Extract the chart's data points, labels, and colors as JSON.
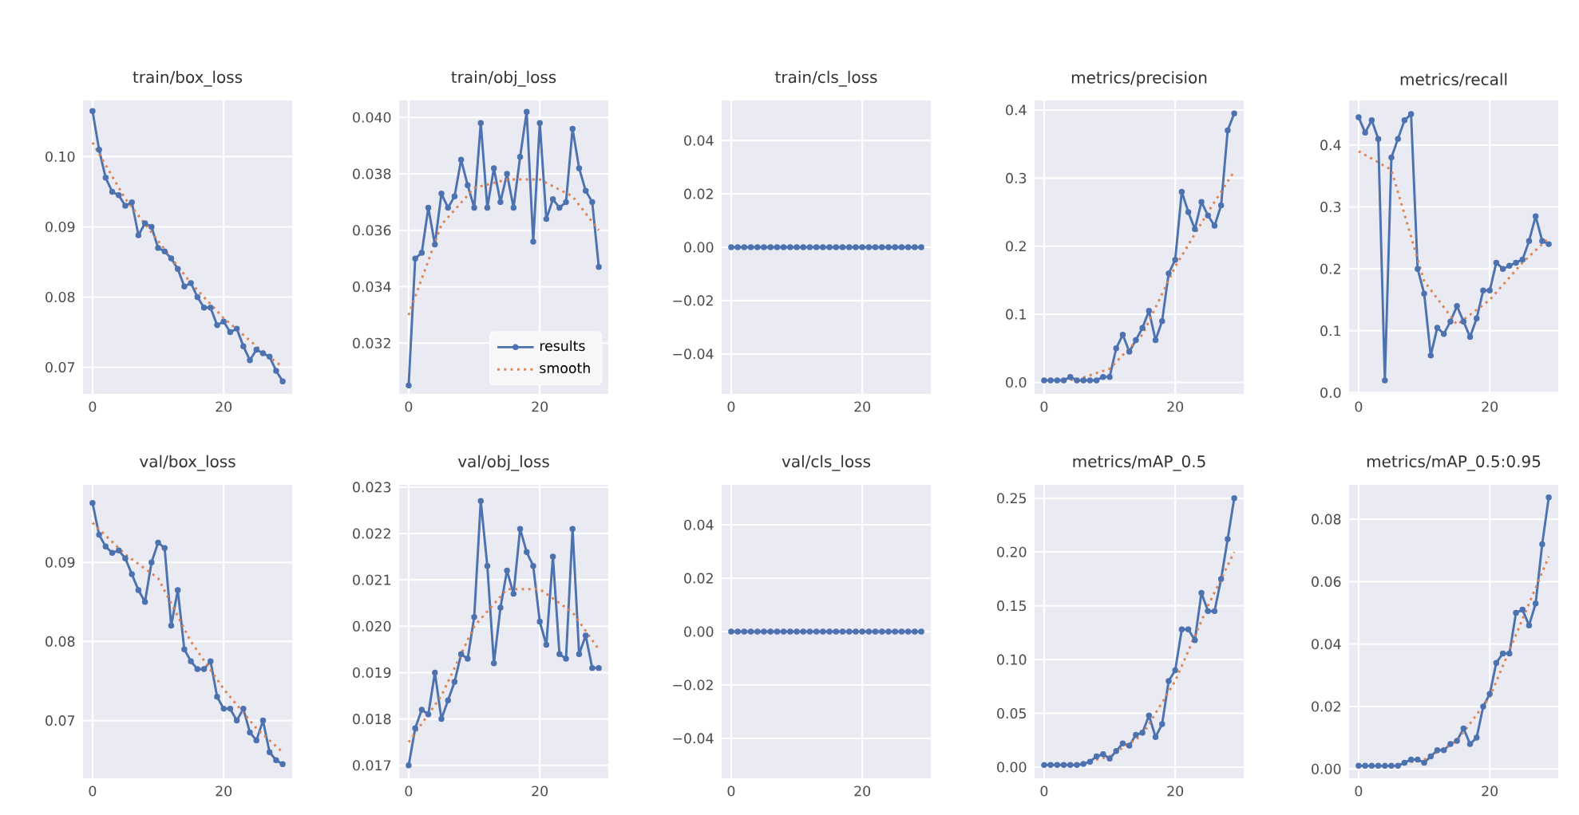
{
  "chart_data": [
    {
      "type": "line",
      "title": "train/box_loss",
      "x": [
        0,
        1,
        2,
        3,
        4,
        5,
        6,
        7,
        8,
        9,
        10,
        11,
        12,
        13,
        14,
        15,
        16,
        17,
        18,
        19,
        20,
        21,
        22,
        23,
        24,
        25,
        26,
        27,
        28,
        29
      ],
      "xlim": [
        -1.45,
        30.45
      ],
      "xticks": [
        0,
        20
      ],
      "ylim": [
        0.0662,
        0.108
      ],
      "yticks": [
        {
          "value": 0.07,
          "label": "0.07"
        },
        {
          "value": 0.08,
          "label": "0.08"
        },
        {
          "value": 0.09,
          "label": "0.09"
        },
        {
          "value": 0.1,
          "label": "0.10"
        }
      ],
      "grid": true,
      "marker": "circle",
      "series": [
        {
          "color": "#4c72b0",
          "values": [
            0.1065,
            0.101,
            0.097,
            0.095,
            0.0945,
            0.093,
            0.0935,
            0.0888,
            0.0905,
            0.09,
            0.087,
            0.0865,
            0.0855,
            0.084,
            0.0815,
            0.082,
            0.08,
            0.0785,
            0.0785,
            0.076,
            0.0765,
            0.075,
            0.0755,
            0.073,
            0.071,
            0.0725,
            0.072,
            0.0715,
            0.0695,
            0.068
          ]
        },
        {
          "type": "line",
          "color": "#dd8452",
          "line_style": "dotted",
          "marker": "none",
          "x": [
            0,
            5,
            10,
            15,
            20,
            25,
            29
          ],
          "values": [
            0.102,
            0.094,
            0.088,
            0.082,
            0.077,
            0.073,
            0.07
          ]
        }
      ]
    },
    {
      "type": "line",
      "title": "train/obj_loss",
      "x": [
        0,
        1,
        2,
        3,
        4,
        5,
        6,
        7,
        8,
        9,
        10,
        11,
        12,
        13,
        14,
        15,
        16,
        17,
        18,
        19,
        20,
        21,
        22,
        23,
        24,
        25,
        26,
        27,
        28,
        29
      ],
      "xlim": [
        -1.45,
        30.45
      ],
      "xticks": [
        0,
        20
      ],
      "ylim": [
        0.0302,
        0.0406
      ],
      "yticks": [
        {
          "value": 0.032,
          "label": "0.032"
        },
        {
          "value": 0.034,
          "label": "0.034"
        },
        {
          "value": 0.036,
          "label": "0.036"
        },
        {
          "value": 0.038,
          "label": "0.038"
        },
        {
          "value": 0.04,
          "label": "0.040"
        }
      ],
      "grid": true,
      "marker": "circle",
      "legend": "bottom right",
      "series": [
        {
          "name": "results",
          "color": "#4c72b0",
          "values": [
            0.0305,
            0.035,
            0.0352,
            0.0368,
            0.0355,
            0.0373,
            0.0368,
            0.0372,
            0.0385,
            0.0376,
            0.0368,
            0.0398,
            0.0368,
            0.0382,
            0.037,
            0.038,
            0.0368,
            0.0386,
            0.0402,
            0.0356,
            0.0398,
            0.0364,
            0.0371,
            0.0368,
            0.037,
            0.0396,
            0.0382,
            0.0374,
            0.037,
            0.0347
          ]
        },
        {
          "name": "smooth",
          "type": "line",
          "color": "#dd8452",
          "line_style": "dotted",
          "marker": "none",
          "x": [
            0,
            5,
            10,
            15,
            20,
            25,
            29
          ],
          "values": [
            0.033,
            0.0362,
            0.0375,
            0.0378,
            0.0378,
            0.0372,
            0.036
          ]
        }
      ]
    },
    {
      "type": "line",
      "title": "train/cls_loss",
      "x": [
        0,
        1,
        2,
        3,
        4,
        5,
        6,
        7,
        8,
        9,
        10,
        11,
        12,
        13,
        14,
        15,
        16,
        17,
        18,
        19,
        20,
        21,
        22,
        23,
        24,
        25,
        26,
        27,
        28,
        29
      ],
      "xlim": [
        -1.45,
        30.45
      ],
      "xticks": [
        0,
        20
      ],
      "ylim": [
        -0.055,
        0.055
      ],
      "yticks": [
        {
          "value": -0.04,
          "label": "−0.04"
        },
        {
          "value": -0.02,
          "label": "−0.02"
        },
        {
          "value": 0,
          "label": "0.00"
        },
        {
          "value": 0.02,
          "label": "0.02"
        },
        {
          "value": 0.04,
          "label": "0.04"
        }
      ],
      "grid": true,
      "marker": "circle",
      "series": [
        {
          "color": "#4c72b0",
          "values": [
            0,
            0,
            0,
            0,
            0,
            0,
            0,
            0,
            0,
            0,
            0,
            0,
            0,
            0,
            0,
            0,
            0,
            0,
            0,
            0,
            0,
            0,
            0,
            0,
            0,
            0,
            0,
            0,
            0,
            0
          ]
        }
      ]
    },
    {
      "type": "line",
      "title": "metrics/precision",
      "x": [
        0,
        1,
        2,
        3,
        4,
        5,
        6,
        7,
        8,
        9,
        10,
        11,
        12,
        13,
        14,
        15,
        16,
        17,
        18,
        19,
        20,
        21,
        22,
        23,
        24,
        25,
        26,
        27,
        28,
        29
      ],
      "xlim": [
        -1.45,
        30.45
      ],
      "xticks": [
        0,
        20
      ],
      "ylim": [
        -0.017,
        0.414
      ],
      "yticks": [
        {
          "value": 0,
          "label": "0.0"
        },
        {
          "value": 0.1,
          "label": "0.1"
        },
        {
          "value": 0.2,
          "label": "0.2"
        },
        {
          "value": 0.3,
          "label": "0.3"
        },
        {
          "value": 0.4,
          "label": "0.4"
        }
      ],
      "grid": true,
      "marker": "circle",
      "series": [
        {
          "color": "#4c72b0",
          "values": [
            0.003,
            0.003,
            0.003,
            0.003,
            0.008,
            0.003,
            0.003,
            0.003,
            0.003,
            0.008,
            0.008,
            0.05,
            0.07,
            0.045,
            0.062,
            0.08,
            0.105,
            0.062,
            0.09,
            0.16,
            0.18,
            0.28,
            0.25,
            0.225,
            0.265,
            0.245,
            0.23,
            0.26,
            0.37,
            0.395
          ]
        },
        {
          "type": "line",
          "color": "#dd8452",
          "line_style": "dotted",
          "marker": "none",
          "x": [
            0,
            5,
            10,
            15,
            20,
            25,
            29
          ],
          "values": [
            0.003,
            0.004,
            0.02,
            0.07,
            0.17,
            0.25,
            0.31
          ]
        }
      ]
    },
    {
      "type": "line",
      "title": "metrics/recall",
      "x": [
        0,
        1,
        2,
        3,
        4,
        5,
        6,
        7,
        8,
        9,
        10,
        11,
        12,
        13,
        14,
        15,
        16,
        17,
        18,
        19,
        20,
        21,
        22,
        23,
        24,
        25,
        26,
        27,
        28,
        29
      ],
      "xlim": [
        -1.45,
        30.45
      ],
      "xticks": [
        0,
        20
      ],
      "ylim": [
        -0.002,
        0.472
      ],
      "yticks": [
        {
          "value": 0,
          "label": "0.0"
        },
        {
          "value": 0.1,
          "label": "0.1"
        },
        {
          "value": 0.2,
          "label": "0.2"
        },
        {
          "value": 0.3,
          "label": "0.3"
        },
        {
          "value": 0.4,
          "label": "0.4"
        }
      ],
      "grid": true,
      "marker": "circle",
      "series": [
        {
          "color": "#4c72b0",
          "values": [
            0.445,
            0.42,
            0.44,
            0.41,
            0.02,
            0.38,
            0.41,
            0.44,
            0.45,
            0.2,
            0.16,
            0.06,
            0.105,
            0.095,
            0.115,
            0.14,
            0.115,
            0.09,
            0.12,
            0.165,
            0.165,
            0.21,
            0.2,
            0.205,
            0.21,
            0.215,
            0.245,
            0.285,
            0.245,
            0.24
          ]
        },
        {
          "type": "line",
          "color": "#dd8452",
          "line_style": "dotted",
          "marker": "none",
          "x": [
            0,
            5,
            10,
            15,
            20,
            25,
            29
          ],
          "values": [
            0.39,
            0.36,
            0.18,
            0.11,
            0.15,
            0.21,
            0.25
          ]
        }
      ]
    },
    {
      "type": "line",
      "title": "val/box_loss",
      "x": [
        0,
        1,
        2,
        3,
        4,
        5,
        6,
        7,
        8,
        9,
        10,
        11,
        12,
        13,
        14,
        15,
        16,
        17,
        18,
        19,
        20,
        21,
        22,
        23,
        24,
        25,
        26,
        27,
        28,
        29
      ],
      "xlim": [
        -1.45,
        30.45
      ],
      "xticks": [
        0,
        20
      ],
      "ylim": [
        0.0627,
        0.0998
      ],
      "yticks": [
        {
          "value": 0.07,
          "label": "0.07"
        },
        {
          "value": 0.08,
          "label": "0.08"
        },
        {
          "value": 0.09,
          "label": "0.09"
        }
      ],
      "grid": true,
      "marker": "circle",
      "series": [
        {
          "color": "#4c72b0",
          "values": [
            0.0975,
            0.0935,
            0.092,
            0.0912,
            0.0915,
            0.0905,
            0.0885,
            0.0865,
            0.085,
            0.09,
            0.0925,
            0.0918,
            0.082,
            0.0865,
            0.079,
            0.0775,
            0.0765,
            0.0765,
            0.0775,
            0.073,
            0.0715,
            0.0715,
            0.07,
            0.0715,
            0.0685,
            0.0675,
            0.07,
            0.066,
            0.065,
            0.0645
          ]
        },
        {
          "type": "line",
          "color": "#dd8452",
          "line_style": "dotted",
          "marker": "none",
          "x": [
            0,
            5,
            10,
            15,
            20,
            25,
            29
          ],
          "values": [
            0.095,
            0.091,
            0.088,
            0.08,
            0.074,
            0.069,
            0.066
          ]
        }
      ]
    },
    {
      "type": "line",
      "title": "val/obj_loss",
      "x": [
        0,
        1,
        2,
        3,
        4,
        5,
        6,
        7,
        8,
        9,
        10,
        11,
        12,
        13,
        14,
        15,
        16,
        17,
        18,
        19,
        20,
        21,
        22,
        23,
        24,
        25,
        26,
        27,
        28,
        29
      ],
      "xlim": [
        -1.45,
        30.45
      ],
      "xticks": [
        0,
        20
      ],
      "ylim": [
        0.01672,
        0.02305
      ],
      "yticks": [
        {
          "value": 0.017,
          "label": "0.017"
        },
        {
          "value": 0.018,
          "label": "0.018"
        },
        {
          "value": 0.019,
          "label": "0.019"
        },
        {
          "value": 0.02,
          "label": "0.020"
        },
        {
          "value": 0.021,
          "label": "0.021"
        },
        {
          "value": 0.022,
          "label": "0.022"
        },
        {
          "value": 0.023,
          "label": "0.023"
        }
      ],
      "grid": true,
      "marker": "circle",
      "series": [
        {
          "color": "#4c72b0",
          "values": [
            0.017,
            0.0178,
            0.0182,
            0.0181,
            0.019,
            0.018,
            0.0184,
            0.0188,
            0.0194,
            0.0193,
            0.0202,
            0.0227,
            0.0213,
            0.0192,
            0.0204,
            0.0212,
            0.0207,
            0.0221,
            0.0216,
            0.0213,
            0.0201,
            0.0196,
            0.0215,
            0.0194,
            0.0193,
            0.0221,
            0.0194,
            0.0198,
            0.0191,
            0.0191
          ]
        },
        {
          "type": "line",
          "color": "#dd8452",
          "line_style": "dotted",
          "marker": "none",
          "x": [
            0,
            5,
            10,
            15,
            20,
            25,
            29
          ],
          "values": [
            0.0175,
            0.0185,
            0.02,
            0.0208,
            0.0208,
            0.0203,
            0.0195
          ]
        }
      ]
    },
    {
      "type": "line",
      "title": "val/cls_loss",
      "x": [
        0,
        1,
        2,
        3,
        4,
        5,
        6,
        7,
        8,
        9,
        10,
        11,
        12,
        13,
        14,
        15,
        16,
        17,
        18,
        19,
        20,
        21,
        22,
        23,
        24,
        25,
        26,
        27,
        28,
        29
      ],
      "xlim": [
        -1.45,
        30.45
      ],
      "xticks": [
        0,
        20
      ],
      "ylim": [
        -0.055,
        0.055
      ],
      "yticks": [
        {
          "value": -0.04,
          "label": "−0.04"
        },
        {
          "value": -0.02,
          "label": "−0.02"
        },
        {
          "value": 0,
          "label": "0.00"
        },
        {
          "value": 0.02,
          "label": "0.02"
        },
        {
          "value": 0.04,
          "label": "0.04"
        }
      ],
      "grid": true,
      "marker": "circle",
      "series": [
        {
          "color": "#4c72b0",
          "values": [
            0,
            0,
            0,
            0,
            0,
            0,
            0,
            0,
            0,
            0,
            0,
            0,
            0,
            0,
            0,
            0,
            0,
            0,
            0,
            0,
            0,
            0,
            0,
            0,
            0,
            0,
            0,
            0,
            0,
            0
          ]
        }
      ]
    },
    {
      "type": "line",
      "title": "metrics/mAP_0.5",
      "x": [
        0,
        1,
        2,
        3,
        4,
        5,
        6,
        7,
        8,
        9,
        10,
        11,
        12,
        13,
        14,
        15,
        16,
        17,
        18,
        19,
        20,
        21,
        22,
        23,
        24,
        25,
        26,
        27,
        28,
        29
      ],
      "xlim": [
        -1.45,
        30.45
      ],
      "xticks": [
        0,
        20
      ],
      "ylim": [
        -0.0104,
        0.2624
      ],
      "yticks": [
        {
          "value": 0,
          "label": "0.00"
        },
        {
          "value": 0.05,
          "label": "0.05"
        },
        {
          "value": 0.1,
          "label": "0.10"
        },
        {
          "value": 0.15,
          "label": "0.15"
        },
        {
          "value": 0.2,
          "label": "0.20"
        },
        {
          "value": 0.25,
          "label": "0.25"
        }
      ],
      "grid": true,
      "marker": "circle",
      "series": [
        {
          "color": "#4c72b0",
          "values": [
            0.002,
            0.002,
            0.002,
            0.002,
            0.002,
            0.002,
            0.003,
            0.005,
            0.01,
            0.012,
            0.008,
            0.015,
            0.022,
            0.02,
            0.03,
            0.032,
            0.048,
            0.028,
            0.04,
            0.08,
            0.09,
            0.128,
            0.128,
            0.118,
            0.162,
            0.145,
            0.145,
            0.175,
            0.212,
            0.25
          ]
        },
        {
          "type": "line",
          "color": "#dd8452",
          "line_style": "dotted",
          "marker": "none",
          "x": [
            0,
            5,
            10,
            15,
            20,
            25,
            29
          ],
          "values": [
            0.002,
            0.002,
            0.01,
            0.03,
            0.08,
            0.15,
            0.2
          ]
        }
      ]
    },
    {
      "type": "line",
      "title": "metrics/mAP_0.5:0.95",
      "x": [
        0,
        1,
        2,
        3,
        4,
        5,
        6,
        7,
        8,
        9,
        10,
        11,
        12,
        13,
        14,
        15,
        16,
        17,
        18,
        19,
        20,
        21,
        22,
        23,
        24,
        25,
        26,
        27,
        28,
        29
      ],
      "xlim": [
        -1.45,
        30.45
      ],
      "xticks": [
        0,
        20
      ],
      "ylim": [
        -0.003,
        0.091
      ],
      "yticks": [
        {
          "value": 0,
          "label": "0.00"
        },
        {
          "value": 0.02,
          "label": "0.02"
        },
        {
          "value": 0.04,
          "label": "0.04"
        },
        {
          "value": 0.06,
          "label": "0.06"
        },
        {
          "value": 0.08,
          "label": "0.08"
        }
      ],
      "grid": true,
      "marker": "circle",
      "series": [
        {
          "color": "#4c72b0",
          "values": [
            0.001,
            0.001,
            0.001,
            0.001,
            0.001,
            0.001,
            0.001,
            0.002,
            0.003,
            0.003,
            0.002,
            0.004,
            0.006,
            0.006,
            0.008,
            0.009,
            0.013,
            0.008,
            0.01,
            0.02,
            0.024,
            0.034,
            0.037,
            0.037,
            0.05,
            0.051,
            0.046,
            0.053,
            0.072,
            0.087
          ]
        },
        {
          "type": "line",
          "color": "#dd8452",
          "line_style": "dotted",
          "marker": "none",
          "x": [
            0,
            5,
            10,
            15,
            20,
            25,
            29
          ],
          "values": [
            0.001,
            0.001,
            0.003,
            0.009,
            0.023,
            0.048,
            0.068
          ]
        }
      ]
    }
  ]
}
